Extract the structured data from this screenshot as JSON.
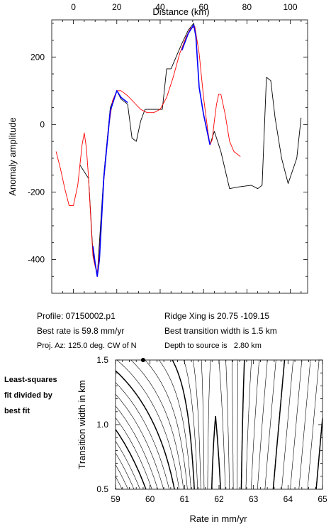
{
  "info": {
    "profile": "Profile: 07150002.p1",
    "best_rate": "Best rate is 59.8 mm/yr",
    "proj_az": "Proj. Az: 125.0 deg. CW of N",
    "ridge_xing": "Ridge Xing is 20.75 -109.15",
    "best_width": "Best transition width is 1.5 km",
    "depth": "Depth to source is   2.80 km"
  },
  "side_note": [
    "Least-squares",
    "fit divided by",
    "best fit"
  ],
  "colors": {
    "observed": "#000000",
    "model": "#ff0000",
    "fit_segment": "#0000ff",
    "contour": "#000000"
  },
  "chart_data": [
    {
      "type": "line",
      "xlabel": "Distance (km)",
      "ylabel": "Anomaly amplitude",
      "xlim": [
        -10,
        108
      ],
      "ylim": [
        -500,
        310
      ],
      "xticks": [
        0,
        20,
        40,
        60,
        80,
        100
      ],
      "yticks": [
        -400,
        -200,
        0,
        200
      ],
      "series": [
        {
          "role": "observed",
          "x": [
            3,
            7,
            9,
            11,
            14,
            17,
            20,
            22,
            25,
            27,
            29,
            31,
            33,
            35,
            38,
            41,
            43,
            45,
            47,
            50,
            53,
            55.5,
            56.5,
            58,
            60,
            63,
            65,
            68,
            72,
            76,
            82,
            85,
            87,
            89,
            91,
            93,
            96,
            99,
            103,
            105
          ],
          "y": [
            -120,
            -160,
            -380,
            -450,
            -150,
            50,
            100,
            75,
            60,
            -40,
            -50,
            10,
            45,
            45,
            45,
            45,
            165,
            165,
            195,
            240,
            280,
            300,
            260,
            110,
            30,
            -60,
            -20,
            -80,
            -190,
            -185,
            -180,
            -190,
            -180,
            140,
            130,
            20,
            -100,
            -175,
            -100,
            20
          ]
        },
        {
          "role": "model",
          "x": [
            -8,
            -6,
            -4,
            -2,
            0,
            2,
            4,
            5,
            6,
            7,
            8,
            9,
            10,
            11,
            12,
            14,
            16,
            18,
            20,
            22,
            25,
            28,
            31,
            34,
            37,
            40,
            43,
            46,
            49,
            52,
            54,
            56,
            58,
            60,
            62,
            63,
            64,
            65,
            66,
            67,
            68,
            70,
            72,
            74,
            77
          ],
          "y": [
            -80,
            -130,
            -190,
            -240,
            -240,
            -180,
            -60,
            -25,
            -70,
            -160,
            -280,
            -390,
            -420,
            -440,
            -380,
            -170,
            -20,
            70,
            100,
            100,
            85,
            65,
            45,
            35,
            35,
            45,
            80,
            140,
            210,
            260,
            285,
            290,
            210,
            80,
            -20,
            -60,
            -45,
            10,
            60,
            90,
            90,
            30,
            -50,
            -80,
            -95
          ]
        },
        {
          "role": "fit",
          "x": [
            9,
            10,
            11,
            12,
            14,
            17,
            20,
            22,
            25,
            27,
            29,
            31,
            33,
            35,
            38,
            41,
            43,
            45,
            47,
            50,
            53,
            55.5,
            56.5,
            58,
            60,
            63
          ],
          "y": [
            -360,
            -410,
            -450,
            -400,
            -160,
            40,
            100,
            80,
            65,
            null,
            null,
            null,
            null,
            null,
            null,
            null,
            null,
            null,
            null,
            220,
            270,
            295,
            260,
            110,
            30,
            -60
          ]
        }
      ]
    },
    {
      "type": "contour",
      "xlabel": "Rate in mm/yr",
      "ylabel": "Transition width in km",
      "xlim": [
        59,
        65
      ],
      "ylim": [
        0.5,
        1.5
      ],
      "xticks": [
        59,
        60,
        61,
        62,
        63,
        64,
        65
      ],
      "yticks": [
        0.5,
        1.0,
        1.5
      ],
      "best_fit": {
        "rate": 59.8,
        "width": 1.5
      }
    }
  ]
}
